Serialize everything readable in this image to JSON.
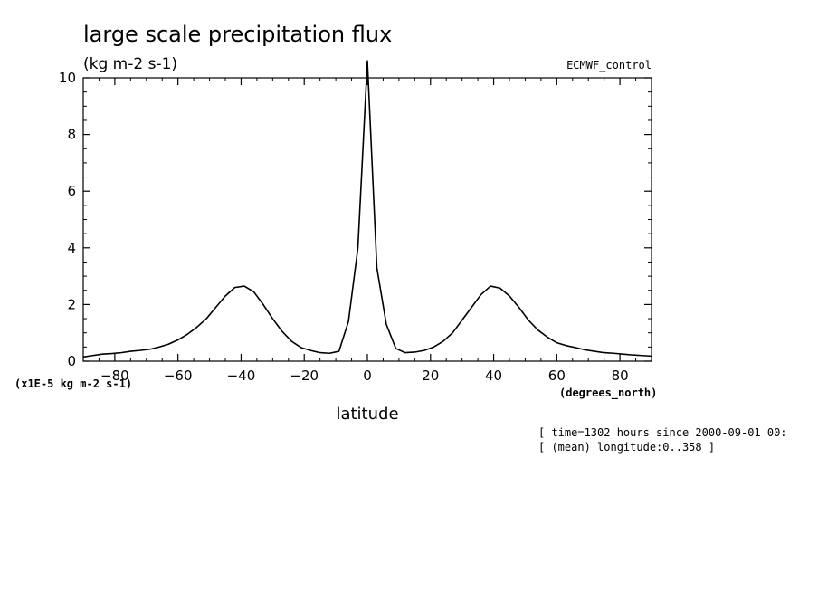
{
  "chart_data": {
    "type": "line",
    "title": "large scale precipitation flux",
    "units": "(kg m-2 s-1)",
    "dataset": "ECMWF_control",
    "ylabel_scale": "(x1E-5 kg m-2 s-1)",
    "xlabel": "latitude",
    "xunits": "(degrees_north)",
    "notes": [
      "[ time=1302 hours since 2000-09-01 00:",
      "[ (mean) longitude:0..358 ]"
    ],
    "xlim": [
      -90,
      90
    ],
    "ylim": [
      0,
      10
    ],
    "xticks": [
      -80,
      -60,
      -40,
      -20,
      0,
      20,
      40,
      60,
      80
    ],
    "xtick_labels": [
      "-80",
      "-60",
      "-40",
      "-20",
      "0",
      "20",
      "40",
      "60",
      "80"
    ],
    "yticks": [
      0,
      2,
      4,
      6,
      8,
      10
    ],
    "ytick_labels": [
      "0",
      "2",
      "4",
      "6",
      "8",
      "10"
    ],
    "grid": false,
    "series": [
      {
        "x": [
          -90,
          -87,
          -84,
          -81,
          -78,
          -75,
          -72,
          -69,
          -66,
          -63,
          -60,
          -57,
          -54,
          -51,
          -48,
          -45,
          -42,
          -39,
          -36,
          -33,
          -30,
          -27,
          -24,
          -21,
          -18,
          -15,
          -12,
          -9,
          -6,
          -3,
          0,
          3,
          6,
          9,
          12,
          15,
          18,
          21,
          24,
          27,
          30,
          33,
          36,
          39,
          42,
          45,
          48,
          51,
          54,
          57,
          60,
          63,
          66,
          69,
          72,
          75,
          78,
          81,
          84,
          87,
          90
        ],
        "y": [
          0.15,
          0.2,
          0.25,
          0.27,
          0.3,
          0.35,
          0.38,
          0.42,
          0.5,
          0.6,
          0.75,
          0.95,
          1.2,
          1.5,
          1.9,
          2.3,
          2.6,
          2.65,
          2.45,
          2.0,
          1.5,
          1.05,
          0.7,
          0.48,
          0.38,
          0.3,
          0.28,
          0.35,
          1.4,
          4.0,
          10.6,
          3.3,
          1.3,
          0.45,
          0.3,
          0.32,
          0.38,
          0.5,
          0.7,
          1.0,
          1.45,
          1.9,
          2.35,
          2.65,
          2.58,
          2.3,
          1.9,
          1.45,
          1.1,
          0.85,
          0.65,
          0.55,
          0.48,
          0.4,
          0.35,
          0.3,
          0.28,
          0.25,
          0.22,
          0.2,
          0.18
        ]
      }
    ]
  }
}
